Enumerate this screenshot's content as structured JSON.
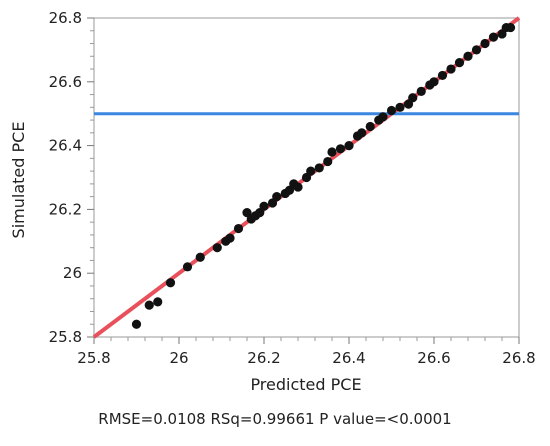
{
  "chart_data": {
    "type": "scatter",
    "title": "",
    "xlabel": "Predicted PCE",
    "ylabel": "Simulated PCE",
    "xlim": [
      25.8,
      26.8
    ],
    "ylim": [
      25.8,
      26.8
    ],
    "x_ticks": [
      25.8,
      26,
      26.2,
      26.4,
      26.6,
      26.8
    ],
    "y_ticks": [
      25.8,
      26,
      26.2,
      26.4,
      26.6,
      26.8
    ],
    "x_tick_labels": [
      "25.8",
      "26",
      "26.2",
      "26.4",
      "26.6",
      "26.8"
    ],
    "y_tick_labels": [
      "25.8",
      "26",
      "26.2",
      "26.4",
      "26.6",
      "26.8"
    ],
    "grid": false,
    "fit_line": {
      "x": [
        25.8,
        26.8
      ],
      "y": [
        25.8,
        26.8
      ],
      "color": "#e8505b"
    },
    "reference_line": {
      "y": 26.5,
      "color": "#3b86e0"
    },
    "point_color": "#111111",
    "series": [
      {
        "x": [
          25.9,
          25.93,
          25.95,
          25.98,
          26.02,
          26.05,
          26.09,
          26.11,
          26.12,
          26.14,
          26.16,
          26.17,
          26.18,
          26.19,
          26.2,
          26.22,
          26.23,
          26.25,
          26.26,
          26.27,
          26.28,
          26.3,
          26.31,
          26.33,
          26.35,
          26.36,
          26.38,
          26.4,
          26.42,
          26.43,
          26.45,
          26.47,
          26.48,
          26.5,
          26.52,
          26.54,
          26.55,
          26.57,
          26.59,
          26.6,
          26.62,
          26.64,
          26.66,
          26.68,
          26.7,
          26.72,
          26.74,
          26.76,
          26.77,
          26.78
        ],
        "y": [
          25.84,
          25.9,
          25.91,
          25.97,
          26.02,
          26.05,
          26.08,
          26.1,
          26.11,
          26.14,
          26.19,
          26.17,
          26.18,
          26.19,
          26.21,
          26.22,
          26.24,
          26.25,
          26.26,
          26.28,
          26.27,
          26.3,
          26.32,
          26.33,
          26.35,
          26.38,
          26.39,
          26.4,
          26.43,
          26.44,
          26.46,
          26.48,
          26.49,
          26.51,
          26.52,
          26.53,
          26.55,
          26.57,
          26.59,
          26.6,
          26.62,
          26.64,
          26.66,
          26.68,
          26.7,
          26.72,
          26.74,
          26.75,
          26.77,
          26.77
        ]
      }
    ]
  },
  "stats_text": "RMSE=0.0108 RSq=0.99661 P value=<0.0001"
}
